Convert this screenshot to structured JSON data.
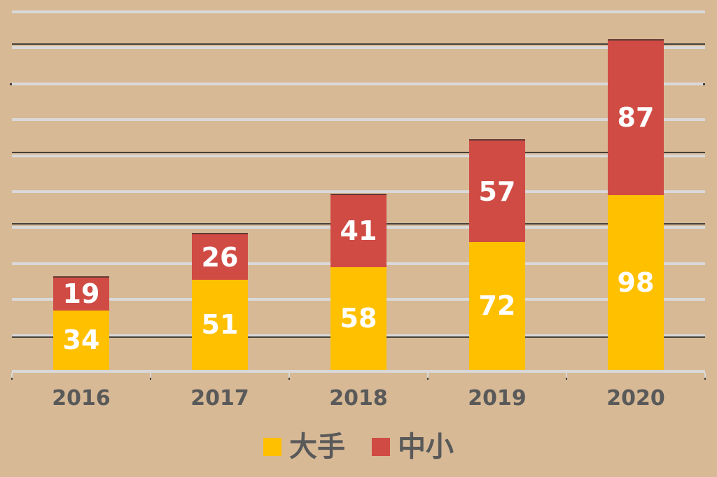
{
  "chart_data": {
    "type": "bar",
    "stacked": true,
    "title": "",
    "xlabel": "",
    "ylabel": "",
    "categories": [
      "2016",
      "2017",
      "2018",
      "2019",
      "2020"
    ],
    "series": [
      {
        "name": "大手",
        "color": "#ffc000",
        "values": [
          34,
          51,
          58,
          72,
          98
        ]
      },
      {
        "name": "中小",
        "color": "#d04b44",
        "values": [
          19,
          26,
          41,
          57,
          87
        ]
      }
    ],
    "totals": [
      53,
      77,
      99,
      129,
      185
    ],
    "ylim": [
      0,
      200
    ],
    "gridline_step": 20,
    "grid": "on",
    "y_tick_labels_visible": false,
    "value_labels": "inside-center",
    "value_label_color": "#ffffff",
    "legend_position": "bottom",
    "emphasized_gridline_values": [
      180,
      120,
      80,
      20
    ],
    "end_tick_gridline_value": 160
  },
  "legend": {
    "items": [
      {
        "label": "大手",
        "color": "#ffc000"
      },
      {
        "label": "中小",
        "color": "#d04b44"
      }
    ]
  },
  "colors": {
    "background": "#d7b996",
    "gridline_light": "#d9d9d9",
    "gridline_dark": "#45413b",
    "axis_text": "#595959",
    "series_yellow": "#ffc000",
    "series_red": "#d04b44",
    "value_label": "#ffffff"
  }
}
